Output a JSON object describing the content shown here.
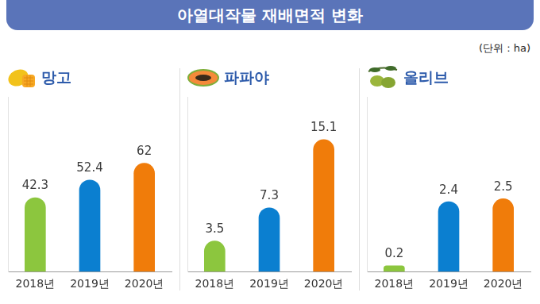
{
  "title": "아열대작물 재배면적 변화",
  "subtitle": "(단위 : ha)",
  "chart_data": [
    {
      "type": "bar",
      "title": "망고",
      "categories": [
        "2018년",
        "2019년",
        "2020년"
      ],
      "values": [
        42.3,
        52.4,
        62
      ],
      "colors": [
        "#8cc63e",
        "#0b7fd0",
        "#f07c0a"
      ],
      "ylim": [
        0,
        100
      ],
      "grid": false,
      "data_labels": true,
      "tick_labels": "x"
    },
    {
      "type": "bar",
      "title": "파파야",
      "categories": [
        "2018년",
        "2019년",
        "2020년"
      ],
      "values": [
        3.5,
        7.3,
        15.1
      ],
      "colors": [
        "#8cc63e",
        "#0b7fd0",
        "#f07c0a"
      ],
      "ylim": [
        0,
        20
      ],
      "grid": false,
      "data_labels": true,
      "tick_labels": "x"
    },
    {
      "type": "bar",
      "title": "올리브",
      "categories": [
        "2018년",
        "2019년",
        "2020년"
      ],
      "values": [
        0.2,
        2.4,
        2.5
      ],
      "colors": [
        "#8cc63e",
        "#0b7fd0",
        "#f07c0a"
      ],
      "ylim": [
        0,
        6
      ],
      "grid": false,
      "data_labels": true,
      "tick_labels": "x"
    }
  ]
}
